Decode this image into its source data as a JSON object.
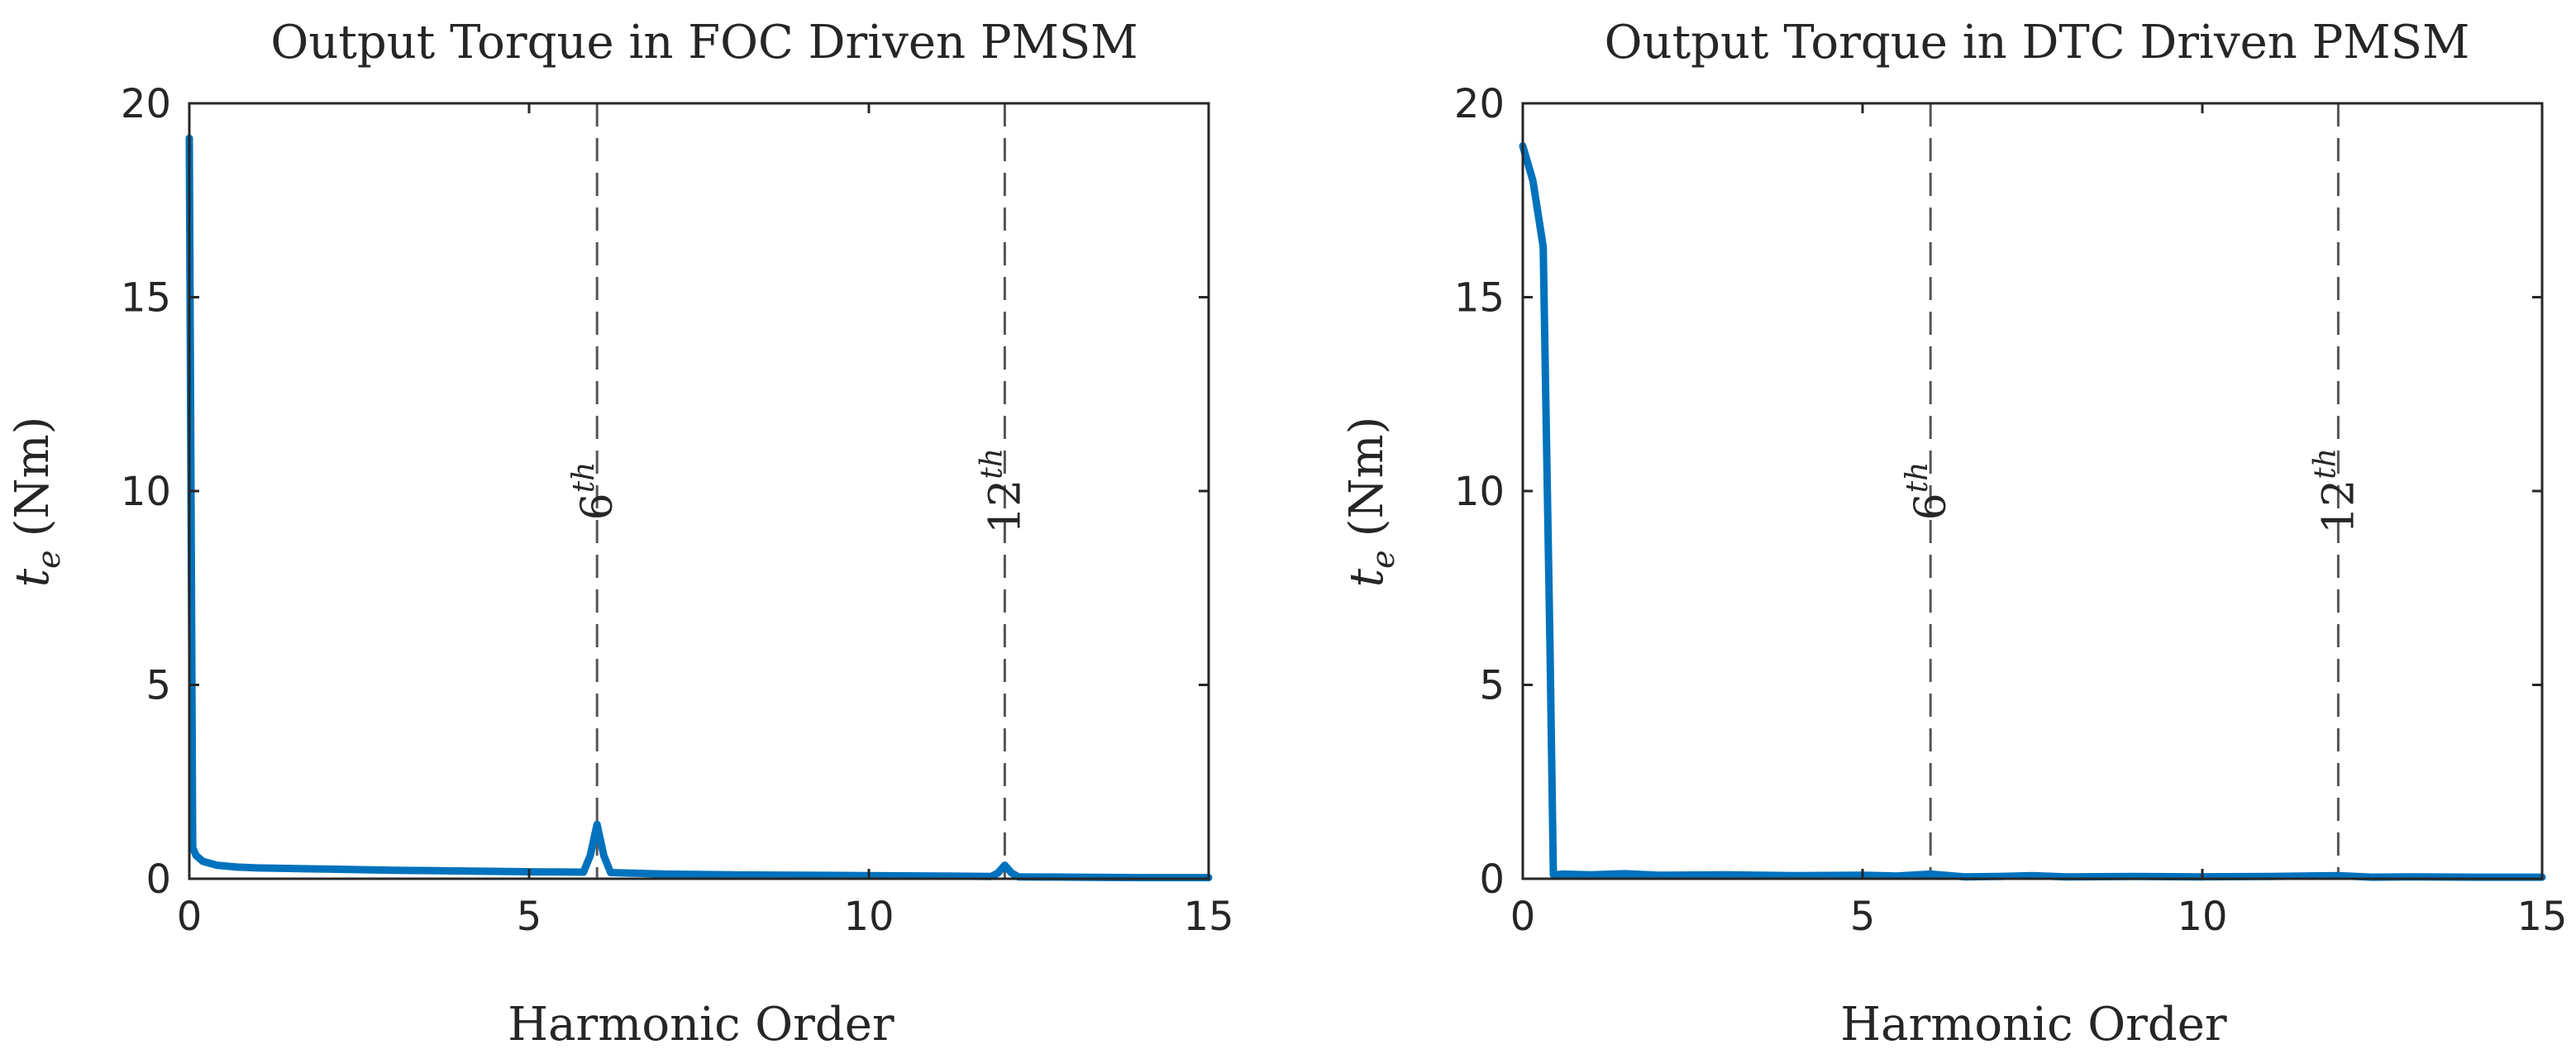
{
  "colors": {
    "series": "#0072BD",
    "axes": "#262626",
    "reference_lines": "#555555"
  },
  "chart_data": [
    {
      "type": "line",
      "title": "Output Torque in FOC Driven PMSM",
      "xlabel": "Harmonic Order",
      "ylabel_main": "t",
      "ylabel_sub": "e",
      "ylabel_unit": "(Nm)",
      "xlim": [
        0,
        15
      ],
      "ylim": [
        0,
        20
      ],
      "xticks": [
        0,
        5,
        10,
        15
      ],
      "xtick_labels": [
        "0",
        "5",
        "10",
        "15"
      ],
      "yticks": [
        0,
        5,
        10,
        15,
        20
      ],
      "ytick_labels": [
        "0",
        "5",
        "10",
        "15",
        "20"
      ],
      "grid": false,
      "box": true,
      "reference_lines": [
        {
          "x": 6,
          "label_base": "6",
          "label_sup": "th"
        },
        {
          "x": 12,
          "label_base": "12",
          "label_sup": "th"
        }
      ],
      "series": [
        {
          "x": [
            0,
            0.05,
            0.1,
            0.2,
            0.4,
            0.7,
            1.0,
            2.0,
            3.0,
            4.0,
            5.0,
            5.8,
            5.9,
            6.0,
            6.1,
            6.2,
            7.0,
            8.0,
            9.0,
            10.0,
            11.0,
            11.8,
            11.9,
            12.0,
            12.1,
            12.2,
            13.0,
            14.0,
            15.0
          ],
          "y": [
            19.1,
            0.8,
            0.6,
            0.45,
            0.35,
            0.3,
            0.28,
            0.25,
            0.22,
            0.2,
            0.18,
            0.17,
            0.6,
            1.4,
            0.6,
            0.16,
            0.12,
            0.1,
            0.09,
            0.08,
            0.07,
            0.06,
            0.15,
            0.35,
            0.15,
            0.05,
            0.04,
            0.03,
            0.03
          ]
        }
      ]
    },
    {
      "type": "line",
      "title": "Output Torque in DTC Driven PMSM",
      "xlabel": "Harmonic Order",
      "ylabel_main": "t",
      "ylabel_sub": "e",
      "ylabel_unit": "(Nm)",
      "xlim": [
        0,
        15
      ],
      "ylim": [
        0,
        20
      ],
      "xticks": [
        0,
        5,
        10,
        15
      ],
      "xtick_labels": [
        "0",
        "5",
        "10",
        "15"
      ],
      "yticks": [
        0,
        5,
        10,
        15,
        20
      ],
      "ytick_labels": [
        "0",
        "5",
        "10",
        "15",
        "20"
      ],
      "grid": false,
      "box": true,
      "reference_lines": [
        {
          "x": 6,
          "label_base": "6",
          "label_sup": "th"
        },
        {
          "x": 12,
          "label_base": "12",
          "label_sup": "th"
        }
      ],
      "series": [
        {
          "x": [
            0,
            0.15,
            0.3,
            0.4,
            0.45,
            0.6,
            1.0,
            1.5,
            2.0,
            3.0,
            4.0,
            5.0,
            5.5,
            6.0,
            6.5,
            7.0,
            7.5,
            8.0,
            9.0,
            10.0,
            11.0,
            12.0,
            12.5,
            13.0,
            14.0,
            15.0
          ],
          "y": [
            18.9,
            18.0,
            16.3,
            6.0,
            0.1,
            0.12,
            0.1,
            0.13,
            0.09,
            0.1,
            0.08,
            0.09,
            0.07,
            0.12,
            0.05,
            0.06,
            0.08,
            0.05,
            0.06,
            0.05,
            0.06,
            0.08,
            0.04,
            0.05,
            0.04,
            0.04
          ]
        }
      ]
    }
  ]
}
